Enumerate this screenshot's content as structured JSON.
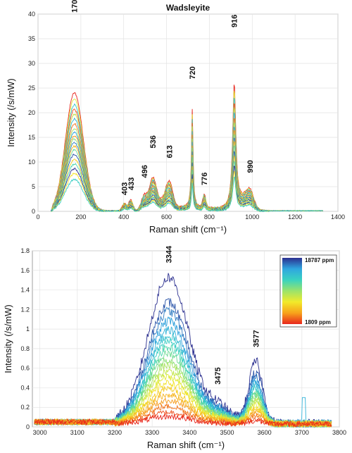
{
  "chart_data": [
    {
      "type": "line",
      "title": "Wadsleyite",
      "xlabel": "Raman shift (cm⁻¹)",
      "ylabel": "Intensity (/s/mW)",
      "xlim": [
        0,
        1400
      ],
      "ylim": [
        0,
        40
      ],
      "xticks": [
        0,
        200,
        400,
        600,
        800,
        1000,
        1200,
        1400
      ],
      "yticks": [
        0,
        5,
        10,
        15,
        20,
        25,
        30,
        35,
        40
      ],
      "grid": true,
      "peaks": [
        {
          "label": "170",
          "x": 170,
          "y": 40
        },
        {
          "label": "403",
          "x": 403,
          "y": 3
        },
        {
          "label": "433",
          "x": 433,
          "y": 4
        },
        {
          "label": "496",
          "x": 496,
          "y": 6.5
        },
        {
          "label": "536",
          "x": 536,
          "y": 12.5
        },
        {
          "label": "613",
          "x": 613,
          "y": 10.5
        },
        {
          "label": "720",
          "x": 720,
          "y": 26.5
        },
        {
          "label": "776",
          "x": 776,
          "y": 5
        },
        {
          "label": "916",
          "x": 916,
          "y": 37
        },
        {
          "label": "990",
          "x": 990,
          "y": 7.5
        }
      ],
      "series_scales": [
        1.0,
        0.95,
        0.9,
        0.86,
        0.82,
        0.78,
        0.74,
        0.7,
        0.67,
        0.64,
        0.61,
        0.58,
        0.55,
        0.52,
        0.48,
        0.44,
        0.4,
        0.36,
        0.32,
        0.27
      ],
      "band_positions": [
        170,
        403,
        433,
        496,
        536,
        613,
        720,
        776,
        916,
        990
      ]
    },
    {
      "type": "line",
      "title": "",
      "xlabel": "Raman shift (cm⁻¹)",
      "ylabel": "Intensity (/s/mW)",
      "xlim": [
        2980,
        3800
      ],
      "ylim": [
        0,
        1.8
      ],
      "xticks": [
        3000,
        3100,
        3200,
        3300,
        3400,
        3500,
        3600,
        3700,
        3800
      ],
      "yticks": [
        0,
        0.2,
        0.4,
        0.6,
        0.8,
        1,
        1.2,
        1.4,
        1.6,
        1.8
      ],
      "grid": true,
      "peaks": [
        {
          "label": "3344",
          "x": 3344,
          "y": 1.66
        },
        {
          "label": "3475",
          "x": 3475,
          "y": 0.42
        },
        {
          "label": "3577",
          "x": 3577,
          "y": 0.8
        }
      ],
      "legend": {
        "type": "colorbar",
        "placement": "top-right",
        "max_label": "18787 ppm",
        "min_label": "1809 ppm",
        "colors": [
          "#2b2f8f",
          "#2fa7e0",
          "#39d2c0",
          "#9be36a",
          "#f2ea2a",
          "#f7a21b",
          "#e8261c"
        ]
      },
      "series_scales": [
        1.0,
        0.83,
        0.77,
        0.7,
        0.64,
        0.6,
        0.56,
        0.52,
        0.48,
        0.44,
        0.4,
        0.36,
        0.32,
        0.28,
        0.24,
        0.2,
        0.16,
        0.12,
        0.08,
        0.05
      ]
    }
  ]
}
